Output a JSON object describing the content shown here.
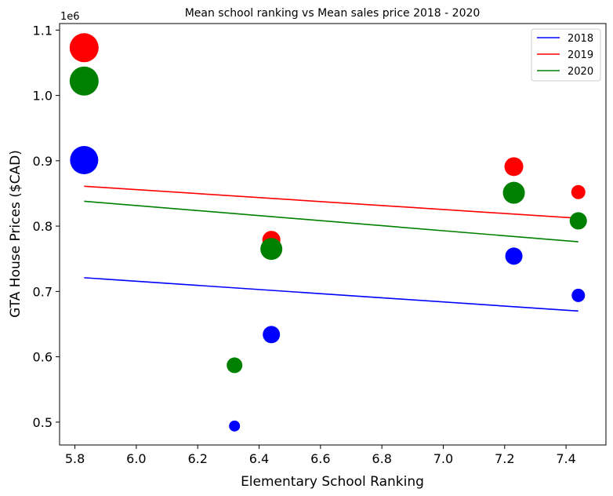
{
  "chart_data": {
    "type": "scatter",
    "title": "Mean school ranking vs Mean sales price 2018 - 2020",
    "xlabel": "Elementary School Ranking",
    "ylabel": "GTA House Prices ($CAD)",
    "y_offset_label": "1e6",
    "xlim": [
      5.75,
      7.53
    ],
    "ylim": [
      465000,
      1110000
    ],
    "xticks": [
      5.8,
      6.0,
      6.2,
      6.4,
      6.6,
      6.8,
      7.0,
      7.2,
      7.4
    ],
    "xtick_labels": [
      "5.8",
      "6.0",
      "6.2",
      "6.4",
      "6.6",
      "6.8",
      "7.0",
      "7.2",
      "7.4"
    ],
    "yticks": [
      500000,
      600000,
      700000,
      800000,
      900000,
      1000000,
      1100000
    ],
    "ytick_labels": [
      "0.5",
      "0.6",
      "0.7",
      "0.8",
      "0.9",
      "1.0",
      "1.1"
    ],
    "grid": false,
    "legend_position": "top-right",
    "series": [
      {
        "name": "2018",
        "color": "#0000ff",
        "points": [
          {
            "x": 5.83,
            "y": 901000,
            "size": 18
          },
          {
            "x": 6.32,
            "y": 494000,
            "size": 7
          },
          {
            "x": 6.44,
            "y": 634000,
            "size": 11
          },
          {
            "x": 7.23,
            "y": 754000,
            "size": 11
          },
          {
            "x": 7.44,
            "y": 694000,
            "size": 8.5
          }
        ],
        "trend": {
          "x": [
            5.83,
            7.44
          ],
          "y": [
            721000,
            670000
          ]
        }
      },
      {
        "name": "2019",
        "color": "#ff0000",
        "points": [
          {
            "x": 5.83,
            "y": 1073000,
            "size": 18.5
          },
          {
            "x": 6.44,
            "y": 779000,
            "size": 11.5
          },
          {
            "x": 7.23,
            "y": 891000,
            "size": 12
          },
          {
            "x": 7.44,
            "y": 852000,
            "size": 9
          }
        ],
        "trend": {
          "x": [
            5.83,
            7.44
          ],
          "y": [
            861000,
            812000
          ]
        }
      },
      {
        "name": "2020",
        "color": "#008000",
        "points": [
          {
            "x": 5.83,
            "y": 1022000,
            "size": 18.5
          },
          {
            "x": 6.32,
            "y": 587000,
            "size": 10
          },
          {
            "x": 6.44,
            "y": 765000,
            "size": 14
          },
          {
            "x": 7.23,
            "y": 851000,
            "size": 14
          },
          {
            "x": 7.44,
            "y": 808000,
            "size": 11
          }
        ],
        "trend": {
          "x": [
            5.83,
            7.44
          ],
          "y": [
            838000,
            776000
          ]
        }
      }
    ]
  }
}
